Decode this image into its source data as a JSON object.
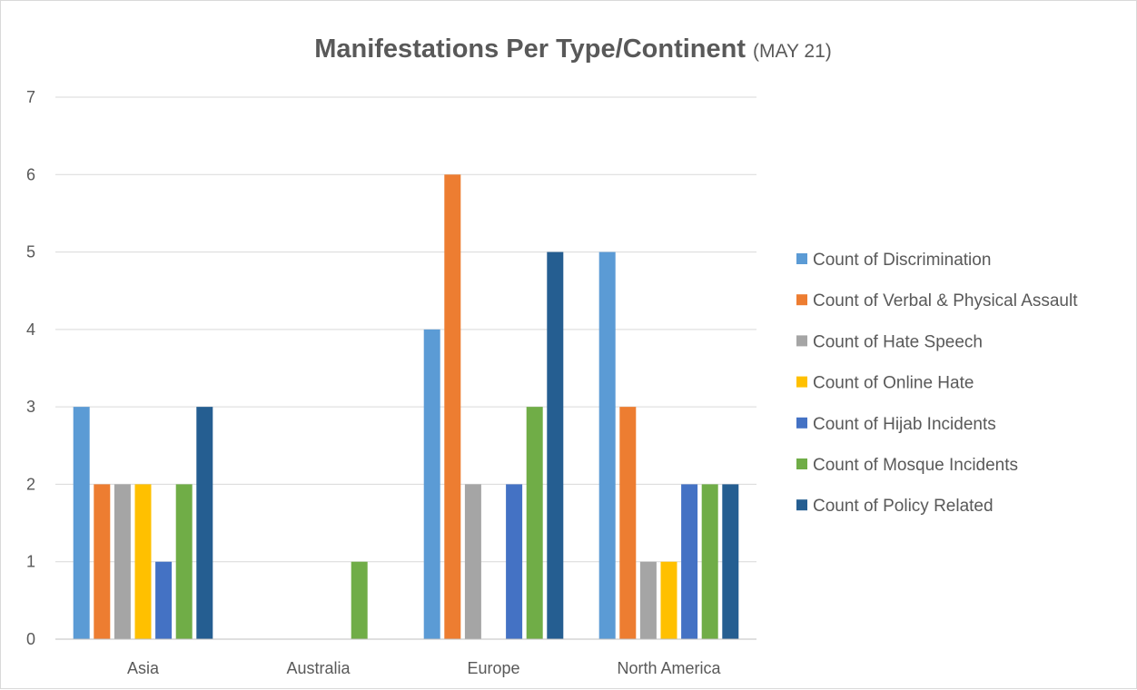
{
  "chart_data": {
    "type": "bar",
    "title": "Manifestations Per Type/Continent",
    "subtitle": "(MAY 21)",
    "xlabel": "",
    "ylabel": "",
    "ylim": [
      0,
      7
    ],
    "yticks": [
      0,
      1,
      2,
      3,
      4,
      5,
      6,
      7
    ],
    "grid": true,
    "legend_position": "right",
    "categories": [
      "Asia",
      "Australia",
      "Europe",
      "North America"
    ],
    "series": [
      {
        "name": "Count of Discrimination",
        "color": "#5b9bd5",
        "values": [
          3,
          0,
          4,
          5
        ]
      },
      {
        "name": "Count of Verbal & Physical Assault",
        "color": "#ed7d31",
        "values": [
          2,
          0,
          6,
          3
        ]
      },
      {
        "name": "Count of Hate Speech",
        "color": "#a5a5a5",
        "values": [
          2,
          0,
          2,
          1
        ]
      },
      {
        "name": "Count of Online Hate",
        "color": "#ffc000",
        "values": [
          2,
          0,
          0,
          1
        ]
      },
      {
        "name": "Count of Hijab Incidents",
        "color": "#4472c4",
        "values": [
          1,
          0,
          2,
          2
        ]
      },
      {
        "name": "Count of Mosque Incidents",
        "color": "#70ad47",
        "values": [
          2,
          1,
          3,
          2
        ]
      },
      {
        "name": "Count of Policy Related",
        "color": "#255e91",
        "values": [
          3,
          0,
          5,
          2
        ]
      }
    ]
  }
}
